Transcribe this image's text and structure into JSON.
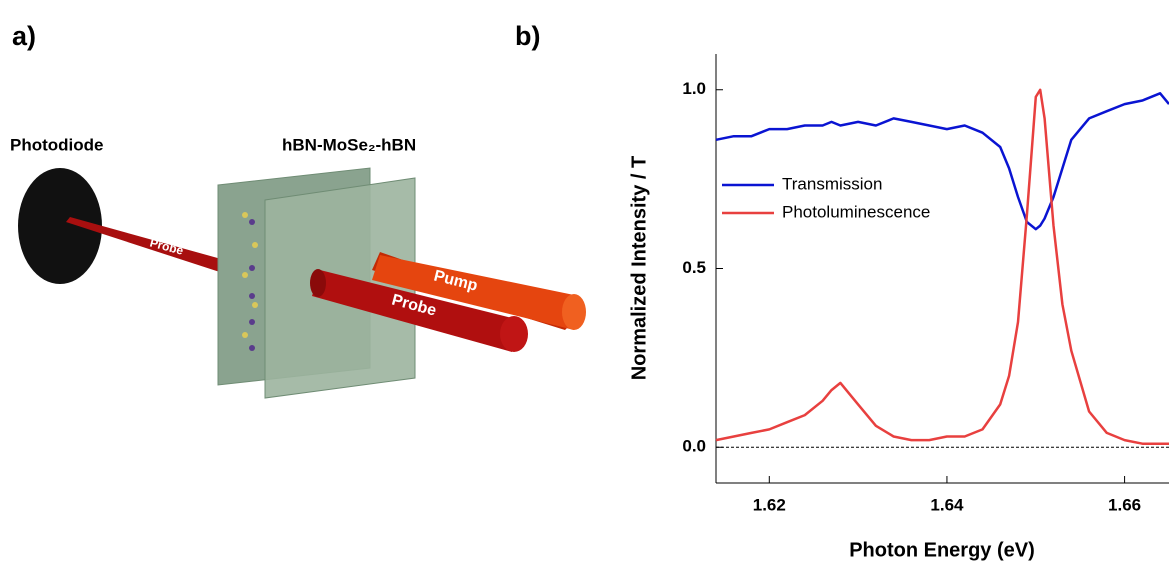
{
  "panel_a": {
    "label": "a)",
    "photodiode": "Photodiode",
    "sample": "hBN-MoSe₂-hBN",
    "probe_back": "Probe",
    "pump": "Pump",
    "probe_front": "Probe"
  },
  "chart_data": {
    "type": "line",
    "panel_label": "b)",
    "xlabel": "Photon Energy (eV)",
    "ylabel": "Normalized Intensity / T",
    "x": [
      1.614,
      1.616,
      1.618,
      1.62,
      1.622,
      1.624,
      1.626,
      1.627,
      1.628,
      1.63,
      1.632,
      1.634,
      1.636,
      1.638,
      1.64,
      1.642,
      1.644,
      1.646,
      1.647,
      1.648,
      1.649,
      1.65,
      1.6505,
      1.651,
      1.652,
      1.653,
      1.654,
      1.656,
      1.658,
      1.66,
      1.662,
      1.664,
      1.665
    ],
    "series": [
      {
        "name": "Transmission",
        "color": "#0a14d2",
        "values": [
          0.86,
          0.87,
          0.87,
          0.89,
          0.89,
          0.9,
          0.9,
          0.91,
          0.9,
          0.91,
          0.9,
          0.92,
          0.91,
          0.9,
          0.89,
          0.9,
          0.88,
          0.84,
          0.78,
          0.7,
          0.63,
          0.61,
          0.62,
          0.64,
          0.7,
          0.78,
          0.86,
          0.92,
          0.94,
          0.96,
          0.97,
          0.99,
          0.96
        ]
      },
      {
        "name": "Photoluminescence",
        "color": "#e8403f",
        "values": [
          0.02,
          0.03,
          0.04,
          0.05,
          0.07,
          0.09,
          0.13,
          0.16,
          0.18,
          0.12,
          0.06,
          0.03,
          0.02,
          0.02,
          0.03,
          0.03,
          0.05,
          0.12,
          0.2,
          0.35,
          0.65,
          0.98,
          1.0,
          0.92,
          0.62,
          0.4,
          0.27,
          0.1,
          0.04,
          0.02,
          0.01,
          0.01,
          0.01
        ]
      }
    ],
    "xlim": [
      1.614,
      1.665
    ],
    "xticks": [
      1.62,
      1.64,
      1.66
    ],
    "ylim": [
      -0.1,
      1.1
    ],
    "yticks": [
      {
        "value": 0,
        "label": "0.0"
      },
      0.5,
      {
        "value": 1,
        "label": "1.0"
      }
    ],
    "zero_line": true,
    "legend": "left"
  }
}
